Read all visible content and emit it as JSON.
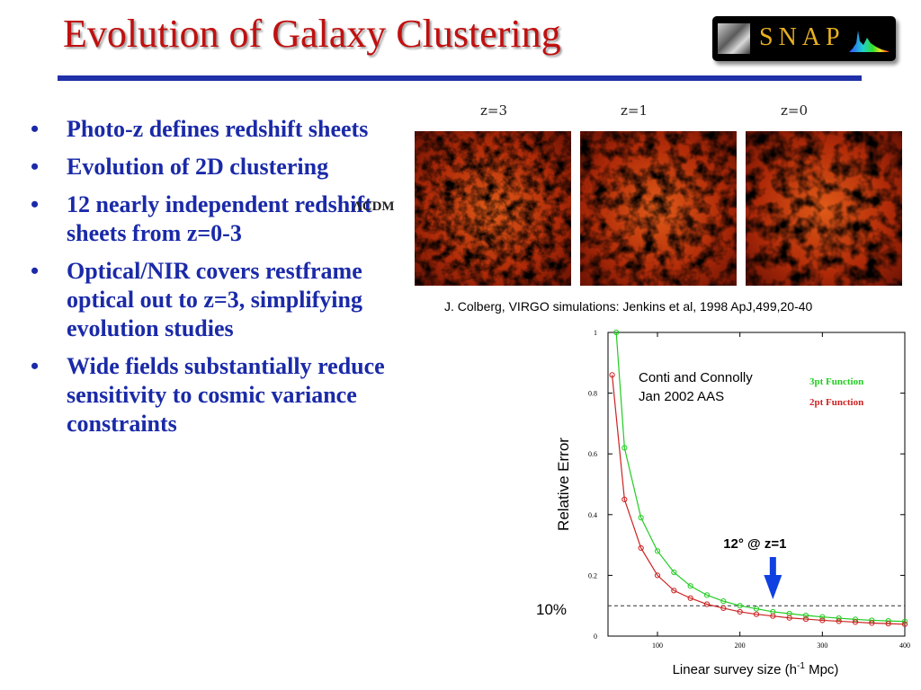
{
  "slide": {
    "title": "Evolution of Galaxy Clustering",
    "logo_text": "SNAP",
    "bullets": [
      "Photo-z defines redshift sheets",
      "Evolution of  2D clustering",
      "12 nearly independent redshift sheets from z=0-3",
      "Optical/NIR covers restframe optical out to z=3, simplifying evolution studies",
      "Wide fields substantially reduce sensitivity to cosmic variance constraints"
    ],
    "bullet_symbol": "•",
    "simulation": {
      "panel_labels": [
        "z=3",
        "z=1",
        "z=0"
      ],
      "model_label": "ΛCDM",
      "credit": "J. Colberg, VIRGO simulations: Jenkins et al, 1998 ApJ,499,20-40"
    },
    "colors": {
      "title": "#c01010",
      "rule": "#2030a8",
      "bullets": "#1a2aa8",
      "three_pt": "#22cc22",
      "two_pt": "#cc2222",
      "arrow": "#1040e0"
    }
  },
  "chart_data": {
    "type": "line",
    "xlabel": "Linear survey size (h",
    "xlabel_sup": "-1",
    "xlabel_tail": " Mpc)",
    "ylabel": "Relative Error",
    "xlim": [
      40,
      400
    ],
    "ylim": [
      0,
      1
    ],
    "xticks": [
      "100",
      "200",
      "300",
      "400"
    ],
    "yticks": [
      "0",
      "0.2",
      "0.4",
      "0.6",
      "0.8",
      "1"
    ],
    "annotation": "Conti and Connolly",
    "annotation_line2": "Jan 2002 AAS",
    "legend": [
      "3pt Function",
      "2pt Function"
    ],
    "reference_line": {
      "y": 0.1,
      "label": "10%"
    },
    "arrow_annotation": {
      "x": 240,
      "label": "12° @ z=1"
    },
    "series": [
      {
        "name": "3pt Function",
        "color": "#22cc22",
        "x": [
          50,
          60,
          80,
          100,
          120,
          140,
          160,
          180,
          200,
          220,
          240,
          260,
          280,
          300,
          320,
          340,
          360,
          380,
          400
        ],
        "values": [
          1.0,
          0.62,
          0.39,
          0.28,
          0.21,
          0.165,
          0.135,
          0.115,
          0.1,
          0.09,
          0.08,
          0.074,
          0.068,
          0.063,
          0.059,
          0.055,
          0.052,
          0.05,
          0.048
        ]
      },
      {
        "name": "2pt Function",
        "color": "#cc2222",
        "x": [
          45,
          60,
          80,
          100,
          120,
          140,
          160,
          180,
          200,
          220,
          240,
          260,
          280,
          300,
          320,
          340,
          360,
          380,
          400
        ],
        "values": [
          0.86,
          0.45,
          0.29,
          0.2,
          0.15,
          0.125,
          0.105,
          0.092,
          0.08,
          0.072,
          0.066,
          0.06,
          0.056,
          0.052,
          0.049,
          0.046,
          0.043,
          0.041,
          0.039
        ]
      }
    ]
  }
}
